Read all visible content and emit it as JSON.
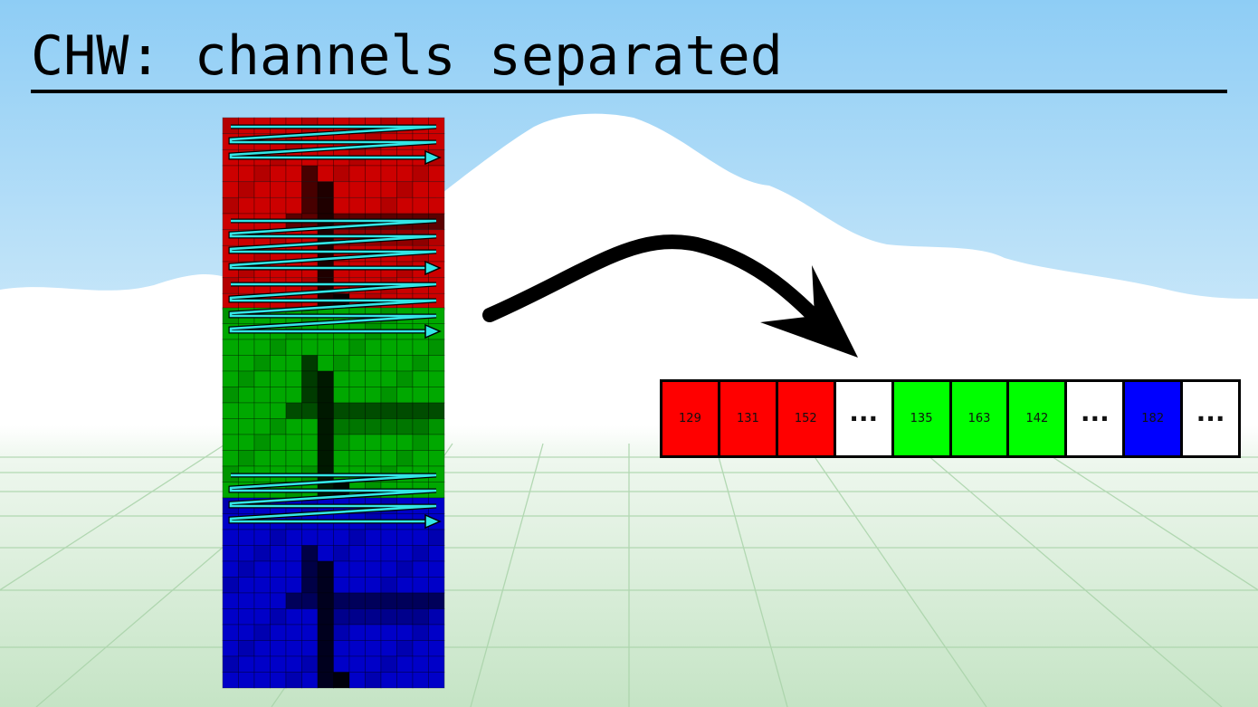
{
  "title": "CHW: channels separated",
  "channel_colors": {
    "red": "#cc0000",
    "green": "#00a800",
    "blue": "#0000c8"
  },
  "scan_arrow_color": "#33e6e6",
  "memory": [
    {
      "label": "129",
      "color": "#ff0000"
    },
    {
      "label": "131",
      "color": "#ff0000"
    },
    {
      "label": "152",
      "color": "#ff0000"
    },
    {
      "label": "...",
      "color": "#ffffff"
    },
    {
      "label": "135",
      "color": "#00ff00"
    },
    {
      "label": "163",
      "color": "#00ff00"
    },
    {
      "label": "142",
      "color": "#00ff00"
    },
    {
      "label": "...",
      "color": "#ffffff"
    },
    {
      "label": "182",
      "color": "#0000ff"
    },
    {
      "label": "...",
      "color": "#ffffff"
    }
  ]
}
